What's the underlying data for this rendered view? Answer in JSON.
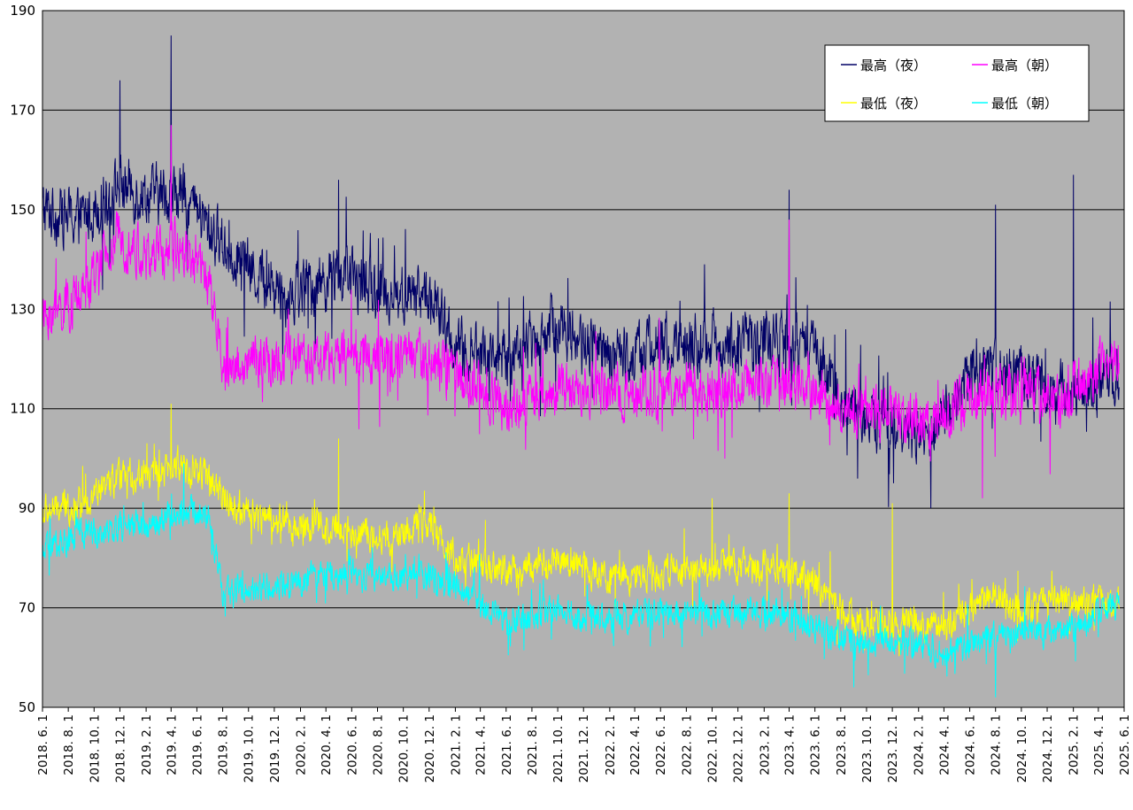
{
  "chart_data": {
    "type": "line",
    "title": "",
    "xlabel": "",
    "ylabel": "",
    "ylim": [
      50,
      190
    ],
    "yticks": [
      50,
      70,
      90,
      110,
      130,
      150,
      170,
      190
    ],
    "x_range": [
      "2018. 6. 1",
      "2025. 6. 1"
    ],
    "xtick_labels": [
      "2018. 6. 1",
      "2018. 8. 1",
      "2018. 10. 1",
      "2018. 12. 1",
      "2019. 2. 1",
      "2019. 4. 1",
      "2019. 6. 1",
      "2019. 8. 1",
      "2019. 10. 1",
      "2019. 12. 1",
      "2020. 2. 1",
      "2020. 4. 1",
      "2020. 6. 1",
      "2020. 8. 1",
      "2020. 10. 1",
      "2020. 12. 1",
      "2021. 2. 1",
      "2021. 4. 1",
      "2021. 6. 1",
      "2021. 8. 1",
      "2021. 10. 1",
      "2021. 12. 1",
      "2022. 2. 1",
      "2022. 4. 1",
      "2022. 6. 1",
      "2022. 8. 1",
      "2022. 10. 1",
      "2022. 12. 1",
      "2023. 2. 1",
      "2023. 4. 1",
      "2023. 6. 1",
      "2023. 8. 1",
      "2023. 10. 1",
      "2023. 12. 1",
      "2024. 2. 1",
      "2024. 4. 1",
      "2024. 6. 1",
      "2024. 8. 1",
      "2024. 10. 1",
      "2024. 12. 1",
      "2025. 2. 1",
      "2025. 4. 1",
      "2025. 6. 1"
    ],
    "grid": true,
    "plot_background": "#b2b2b2",
    "legend_position": "top-right",
    "series": [
      {
        "name": "最高（夜）",
        "color": "#000066",
        "anchors": [
          [
            "2018. 6. 1",
            150
          ],
          [
            "2018. 9. 1",
            148
          ],
          [
            "2018. 12. 1",
            155
          ],
          [
            "2019. 2. 1",
            153
          ],
          [
            "2019. 5. 1",
            153
          ],
          [
            "2019. 7. 1",
            146
          ],
          [
            "2019. 10. 1",
            138
          ],
          [
            "2020. 1. 1",
            133
          ],
          [
            "2020. 5. 1",
            137
          ],
          [
            "2020. 9. 1",
            133
          ],
          [
            "2020. 12. 1",
            133
          ],
          [
            "2021. 2. 1",
            122
          ],
          [
            "2021. 6. 1",
            120
          ],
          [
            "2021. 10. 1",
            127
          ],
          [
            "2022. 2. 1",
            120
          ],
          [
            "2022. 6. 1",
            123
          ],
          [
            "2022. 10. 1",
            123
          ],
          [
            "2023. 3. 1",
            124
          ],
          [
            "2023. 6. 1",
            121
          ],
          [
            "2023. 9. 1",
            108
          ],
          [
            "2023. 12. 1",
            108
          ],
          [
            "2024. 3. 1",
            104
          ],
          [
            "2024. 6. 1",
            117
          ],
          [
            "2024. 10. 1",
            117
          ],
          [
            "2025. 1. 1",
            113
          ],
          [
            "2025. 5. 1",
            116
          ]
        ],
        "noise": 9,
        "spikes": [
          [
            "2019. 4. 1",
            185
          ],
          [
            "2018. 12. 1",
            176
          ],
          [
            "2020. 5. 1",
            156
          ],
          [
            "2023. 4. 1",
            154
          ],
          [
            "2025. 2. 1",
            157
          ],
          [
            "2024. 8. 1",
            151
          ],
          [
            "2024. 3. 1",
            90
          ]
        ]
      },
      {
        "name": "最高（朝）",
        "color": "#ff00ff",
        "anchors": [
          [
            "2018. 6. 1",
            128
          ],
          [
            "2018. 9. 1",
            132
          ],
          [
            "2018. 12. 1",
            145
          ],
          [
            "2019. 2. 1",
            140
          ],
          [
            "2019. 5. 1",
            143
          ],
          [
            "2019. 7. 1",
            135
          ],
          [
            "2019. 8. 1",
            118
          ],
          [
            "2019. 12. 1",
            120
          ],
          [
            "2020. 5. 1",
            120
          ],
          [
            "2020. 9. 1",
            121
          ],
          [
            "2020. 12. 1",
            120
          ],
          [
            "2021. 3. 1",
            115
          ],
          [
            "2021. 6. 1",
            110
          ],
          [
            "2021. 10. 1",
            114
          ],
          [
            "2022. 2. 1",
            113
          ],
          [
            "2022. 6. 1",
            114
          ],
          [
            "2022. 10. 1",
            114
          ],
          [
            "2023. 3. 1",
            115
          ],
          [
            "2023. 6. 1",
            113
          ],
          [
            "2023. 9. 1",
            110
          ],
          [
            "2024. 3. 1",
            107
          ],
          [
            "2024. 6. 1",
            112
          ],
          [
            "2024. 10. 1",
            114
          ],
          [
            "2025. 1. 1",
            112
          ],
          [
            "2025. 5. 1",
            120
          ]
        ],
        "noise": 8,
        "spikes": [
          [
            "2019. 4. 1",
            167
          ],
          [
            "2023. 4. 1",
            148
          ],
          [
            "2024. 7. 1",
            92
          ]
        ]
      },
      {
        "name": "最低（夜）",
        "color": "#ffff00",
        "anchors": [
          [
            "2018. 6. 1",
            89
          ],
          [
            "2018. 9. 1",
            91
          ],
          [
            "2018. 12. 1",
            96
          ],
          [
            "2019. 3. 1",
            97
          ],
          [
            "2019. 5. 1",
            99
          ],
          [
            "2019. 7. 1",
            96
          ],
          [
            "2019. 9. 1",
            90
          ],
          [
            "2020. 1. 1",
            87
          ],
          [
            "2020. 5. 1",
            86
          ],
          [
            "2020. 9. 1",
            84
          ],
          [
            "2020. 12. 1",
            87
          ],
          [
            "2021. 2. 1",
            80
          ],
          [
            "2021. 6. 1",
            77
          ],
          [
            "2021. 10. 1",
            80
          ],
          [
            "2022. 2. 1",
            76
          ],
          [
            "2022. 6. 1",
            77
          ],
          [
            "2022. 10. 1",
            78
          ],
          [
            "2023. 3. 1",
            78
          ],
          [
            "2023. 6. 1",
            75
          ],
          [
            "2023. 9. 1",
            67
          ],
          [
            "2024. 1. 1",
            67
          ],
          [
            "2024. 4. 1",
            66
          ],
          [
            "2024. 7. 1",
            72
          ],
          [
            "2024. 10. 1",
            70
          ],
          [
            "2025. 1. 1",
            71
          ],
          [
            "2025. 5. 1",
            71
          ]
        ],
        "noise": 5,
        "spikes": [
          [
            "2019. 4. 1",
            111
          ],
          [
            "2020. 5. 1",
            104
          ],
          [
            "2022. 10. 1",
            92
          ],
          [
            "2023. 4. 1",
            93
          ],
          [
            "2023. 12. 1",
            91
          ]
        ]
      },
      {
        "name": "最低（朝）",
        "color": "#00ffff",
        "anchors": [
          [
            "2018. 6. 1",
            81
          ],
          [
            "2018. 9. 1",
            85
          ],
          [
            "2018. 12. 1",
            86
          ],
          [
            "2019. 3. 1",
            87
          ],
          [
            "2019. 5. 1",
            90
          ],
          [
            "2019. 7. 1",
            88
          ],
          [
            "2019. 8. 1",
            73
          ],
          [
            "2020. 1. 1",
            75
          ],
          [
            "2020. 5. 1",
            77
          ],
          [
            "2020. 9. 1",
            76
          ],
          [
            "2020. 12. 1",
            76
          ],
          [
            "2021. 3. 1",
            73
          ],
          [
            "2021. 6. 1",
            67
          ],
          [
            "2021. 10. 1",
            69
          ],
          [
            "2022. 2. 1",
            68
          ],
          [
            "2022. 6. 1",
            69
          ],
          [
            "2022. 10. 1",
            69
          ],
          [
            "2023. 3. 1",
            69
          ],
          [
            "2023. 6. 1",
            66
          ],
          [
            "2023. 9. 1",
            63
          ],
          [
            "2024. 1. 1",
            63
          ],
          [
            "2024. 4. 1",
            61
          ],
          [
            "2024. 7. 1",
            63
          ],
          [
            "2024. 10. 1",
            65
          ],
          [
            "2025. 1. 1",
            65
          ],
          [
            "2025. 5. 1",
            70
          ]
        ],
        "noise": 4.5,
        "spikes": [
          [
            "2019. 5. 1",
            99
          ],
          [
            "2023. 9. 1",
            54
          ],
          [
            "2024. 8. 1",
            52
          ]
        ]
      }
    ]
  }
}
